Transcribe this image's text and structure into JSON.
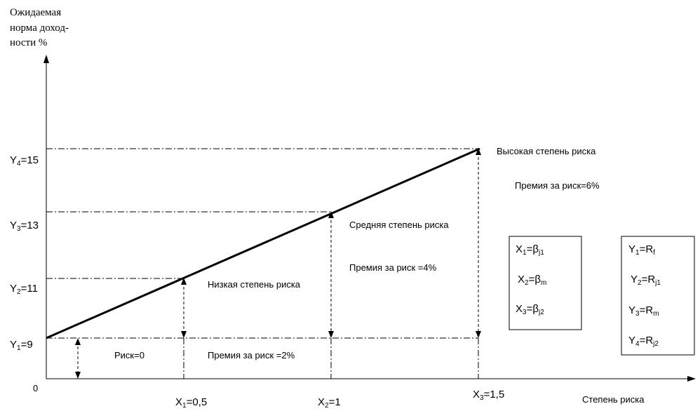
{
  "chart_data": {
    "type": "line",
    "ylabel_lines": [
      "Ожидаемая",
      "норма доход-",
      "ности %"
    ],
    "xlabel": "Степень риска",
    "origin_label": "0",
    "x": [
      0,
      0.5,
      1,
      1.5
    ],
    "y": [
      9,
      11,
      13,
      15
    ],
    "series": [
      {
        "x": [
          0,
          1.5
        ],
        "y": [
          9,
          15
        ]
      }
    ],
    "y_ticks": [
      {
        "value": 9,
        "base": "Y",
        "sub": "1",
        "suffix": "=9"
      },
      {
        "value": 11,
        "base": "Y",
        "sub": "2",
        "suffix": "=11"
      },
      {
        "value": 13,
        "base": "Y",
        "sub": "3",
        "suffix": "=13"
      },
      {
        "value": 15,
        "base": "Y",
        "sub": "4",
        "suffix": "=15"
      }
    ],
    "x_ticks": [
      {
        "value": 0.5,
        "base": "X",
        "sub": "1",
        "suffix": "=0,5"
      },
      {
        "value": 1,
        "base": "X",
        "sub": "2",
        "suffix": "=1"
      },
      {
        "value": 1.5,
        "base": "X",
        "sub": "3",
        "suffix": "=1,5"
      }
    ],
    "annotations": {
      "high_risk": "Высокая степень риска",
      "premium_6": "Премия за риск=6%",
      "medium_risk": "Средняя степень риска",
      "premium_4": "Премия за риск =4%",
      "low_risk": "Низкая степень риска",
      "risk_zero": "Риск=0",
      "premium_2": "Премия за риск =2%"
    },
    "legend_x": [
      {
        "base": "X",
        "sub": "1",
        "eq": "=β",
        "sub2": "j1"
      },
      {
        "base": "X",
        "sub": "2",
        "eq": "=β",
        "sub2": "m"
      },
      {
        "base": "X",
        "sub": "3",
        "eq": "=β",
        "sub2": "j2"
      }
    ],
    "legend_y": [
      {
        "base": "Y",
        "sub": "1",
        "eq": "=R",
        "sub2": "f"
      },
      {
        "base": "Y",
        "sub": "2",
        "eq": "=R",
        "sub2": "j1"
      },
      {
        "base": "Y",
        "sub": "3",
        "eq": "=R",
        "sub2": "m"
      },
      {
        "base": "Y",
        "sub": "4",
        "eq": "=R",
        "sub2": "j2"
      }
    ],
    "xlim": [
      0,
      1.5
    ],
    "ylim": [
      0,
      15
    ]
  }
}
